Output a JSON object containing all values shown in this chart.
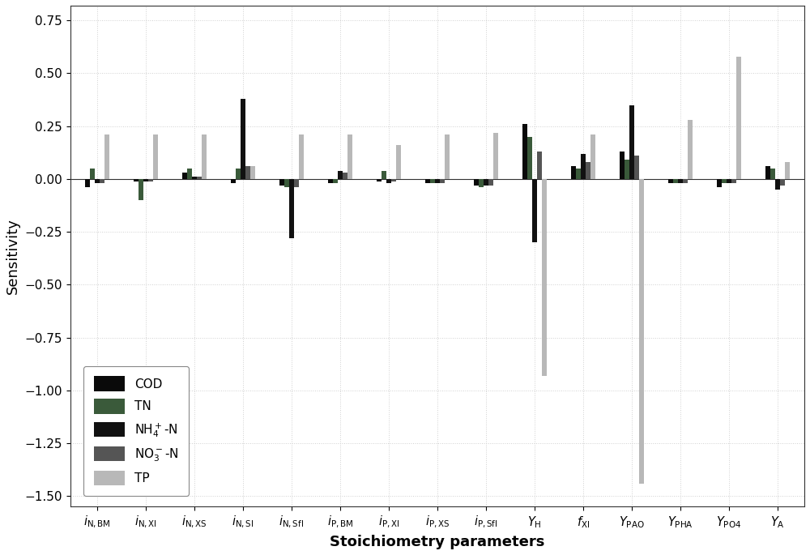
{
  "categories": [
    "i_{N,BM}",
    "i_{N,XI}",
    "i_{N,XS}",
    "i_{N,SI}",
    "i_{N,SII}",
    "i_{P,BM}",
    "i_{P,XI}",
    "i_{P,XS}",
    "i_{P,SII}",
    "Y_H",
    "f_{XI}",
    "Y_{PAO}",
    "Y_{PHA}",
    "Y_{PO4}",
    "Y_A"
  ],
  "series": {
    "COD": {
      "color": "#0a0a0a",
      "values": [
        -0.04,
        -0.01,
        0.03,
        -0.02,
        -0.03,
        -0.02,
        -0.01,
        -0.02,
        -0.03,
        0.26,
        0.06,
        0.13,
        -0.02,
        -0.04,
        0.06
      ]
    },
    "TN": {
      "color": "#3a5a3a",
      "values": [
        0.05,
        -0.1,
        0.05,
        0.05,
        -0.04,
        -0.02,
        0.04,
        -0.02,
        -0.04,
        0.2,
        0.05,
        0.09,
        -0.02,
        -0.02,
        0.05
      ]
    },
    "NH4N": {
      "color": "#111111",
      "values": [
        -0.02,
        -0.01,
        0.01,
        0.38,
        -0.28,
        0.04,
        -0.02,
        -0.02,
        -0.03,
        -0.3,
        0.12,
        0.35,
        -0.02,
        -0.02,
        -0.05
      ]
    },
    "NO3N": {
      "color": "#555555",
      "values": [
        -0.02,
        -0.01,
        0.01,
        0.06,
        -0.04,
        0.03,
        -0.01,
        -0.02,
        -0.03,
        0.13,
        0.08,
        0.11,
        -0.02,
        -0.02,
        -0.03
      ]
    },
    "TP": {
      "color": "#b8b8b8",
      "values": [
        0.21,
        0.21,
        0.21,
        0.06,
        0.21,
        0.21,
        0.16,
        0.21,
        0.22,
        -0.93,
        0.21,
        -1.44,
        0.28,
        0.58,
        0.08
      ]
    }
  },
  "ylim": [
    -1.55,
    0.82
  ],
  "yticks": [
    -1.5,
    -1.25,
    -1.0,
    -0.75,
    -0.5,
    -0.25,
    0.0,
    0.25,
    0.5,
    0.75
  ],
  "ylabel": "Sensitivity",
  "xlabel": "Stoichiometry parameters",
  "background_color": "#ffffff",
  "grid_color": "#d0d0d0",
  "legend_labels": [
    "COD",
    "TN",
    "NH$_4^+$-N",
    "NO$_3^-$-N",
    "TP"
  ],
  "legend_colors": [
    "#0a0a0a",
    "#3a5a3a",
    "#111111",
    "#555555",
    "#b8b8b8"
  ],
  "bar_width": 0.1,
  "figsize": [
    10.0,
    6.85
  ]
}
